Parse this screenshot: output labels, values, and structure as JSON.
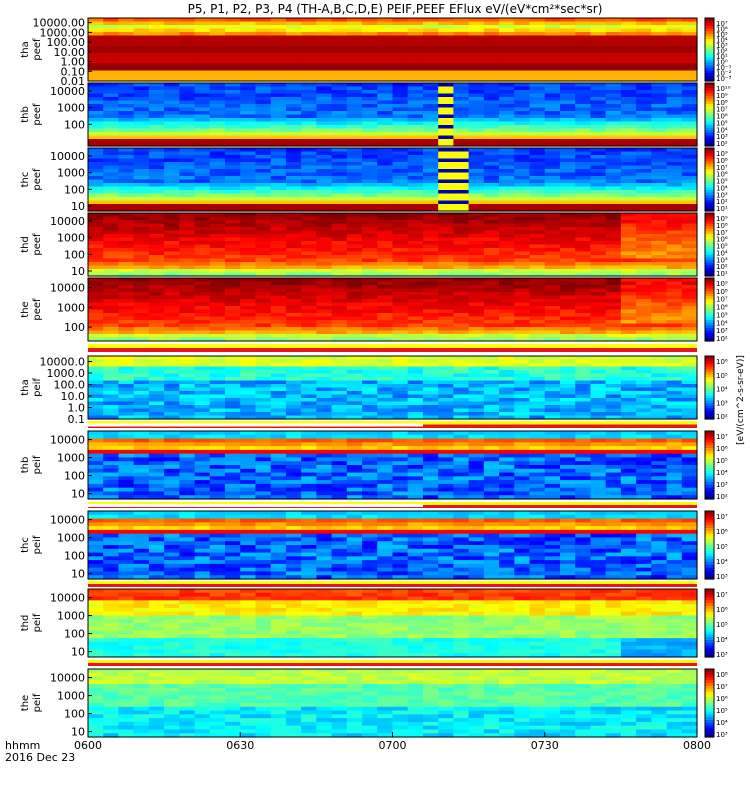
{
  "title": "P5, P1, P2, P3, P4 (TH-A,B,C,D,E) PEIF,PEEF EFlux eV/(eV*cm²*sec*sr)",
  "colorbar_unit": "[eV/(cm^2-s-sr-eV)]",
  "x_axis": {
    "label_line1": "hhmm",
    "label_line2": "2016 Dec 23",
    "ticks": [
      "0600",
      "0630",
      "0700",
      "0730",
      "0800"
    ],
    "range_minutes": [
      0,
      120
    ]
  },
  "chart_data": {
    "type": "heatmap",
    "panels": [
      {
        "id": "tha-peef",
        "label_line1": "tha",
        "label_line2": "peef",
        "yscale": "log",
        "ylim": [
          0.01,
          30000
        ],
        "yticks": [
          "10000.00",
          "1000.00",
          "100.00",
          "10.00",
          "1.00",
          "0.10",
          "0.01"
        ],
        "colorbar_ticks": [
          "10⁷",
          "10⁶",
          "10⁵",
          "10⁴",
          "10³",
          "10²",
          "10¹",
          "10⁰",
          "10⁻¹",
          "10⁻²",
          "10⁻³"
        ],
        "pattern": "bands"
      },
      {
        "id": "thb-peef",
        "label_line1": "thb",
        "label_line2": "peef",
        "yscale": "log",
        "ylim": [
          5,
          30000
        ],
        "yticks": [
          "10000",
          "1000",
          "100"
        ],
        "colorbar_ticks": [
          "10¹⁰",
          "10⁹",
          "10⁸",
          "10⁷",
          "10⁶",
          "10⁵",
          "10⁴",
          "10³",
          "10²"
        ],
        "gap_minutes": [
          67,
          72
        ],
        "pattern": "fade_low"
      },
      {
        "id": "thc-peef",
        "label_line1": "thc",
        "label_line2": "peef",
        "yscale": "log",
        "ylim": [
          5,
          30000
        ],
        "yticks": [
          "10000",
          "1000",
          "100",
          "10"
        ],
        "colorbar_ticks": [
          "10⁹",
          "10⁸",
          "10⁷",
          "10⁶",
          "10⁵",
          "10⁴",
          "10³",
          "10²",
          "10¹"
        ],
        "gap_minutes": [
          68,
          73
        ],
        "pattern": "fade_low"
      },
      {
        "id": "thd-peef",
        "label_line1": "thd",
        "label_line2": "peef",
        "yscale": "log",
        "ylim": [
          5,
          30000
        ],
        "yticks": [
          "10000",
          "1000",
          "100",
          "10"
        ],
        "colorbar_ticks": [
          "10⁹",
          "10⁸",
          "10⁷",
          "10⁶",
          "10⁵",
          "10⁴",
          "10³",
          "10²",
          "10¹"
        ],
        "pattern": "hot_high"
      },
      {
        "id": "the-peef",
        "label_line1": "the",
        "label_line2": "peef",
        "yscale": "log",
        "ylim": [
          20,
          30000
        ],
        "yticks": [
          "10000",
          "1000",
          "100"
        ],
        "colorbar_ticks": [
          "10⁹",
          "10⁸",
          "10⁷",
          "10⁶",
          "10⁵",
          "10⁴",
          "10³",
          "10²"
        ],
        "pattern": "hot_high"
      },
      {
        "id": "tha-peif",
        "label_line1": "tha",
        "label_line2": "peif",
        "yscale": "log",
        "ylim": [
          0.1,
          30000
        ],
        "yticks": [
          "10000.0",
          "1000.0",
          "100.0",
          "10.0",
          "1.0",
          "0.1"
        ],
        "colorbar_ticks": [
          "10⁶",
          "10⁵",
          "10⁴",
          "10³",
          "10²"
        ],
        "pattern": "cool"
      },
      {
        "id": "thb-peif",
        "label_line1": "thb",
        "label_line2": "peif",
        "yscale": "log",
        "ylim": [
          5,
          30000
        ],
        "yticks": [
          "10000",
          "1000",
          "100",
          "10"
        ],
        "colorbar_ticks": [
          "10⁷",
          "10⁶",
          "10⁵",
          "10⁴",
          "10³",
          "10²"
        ],
        "pattern": "dark_blue"
      },
      {
        "id": "thc-peif",
        "label_line1": "thc",
        "label_line2": "peif",
        "yscale": "log",
        "ylim": [
          5,
          30000
        ],
        "yticks": [
          "10000",
          "1000",
          "100",
          "10"
        ],
        "colorbar_ticks": [
          "10⁷",
          "10⁶",
          "10⁵",
          "10⁴",
          "10³"
        ],
        "pattern": "dark_blue"
      },
      {
        "id": "thd-peif",
        "label_line1": "thd",
        "label_line2": "peif",
        "yscale": "log",
        "ylim": [
          5,
          30000
        ],
        "yticks": [
          "10000",
          "1000",
          "100",
          "10"
        ],
        "colorbar_ticks": [
          "10⁷",
          "10⁶",
          "10⁵",
          "10⁴",
          "10³"
        ],
        "pattern": "warm_ion"
      },
      {
        "id": "the-peif",
        "label_line1": "the",
        "label_line2": "peif",
        "yscale": "log",
        "ylim": [
          5,
          30000
        ],
        "yticks": [
          "10000",
          "1000",
          "100",
          "10"
        ],
        "colorbar_ticks": [
          "10⁸",
          "10⁷",
          "10⁶",
          "10⁵",
          "10⁴",
          "10³"
        ],
        "pattern": "cool_ion"
      }
    ]
  }
}
